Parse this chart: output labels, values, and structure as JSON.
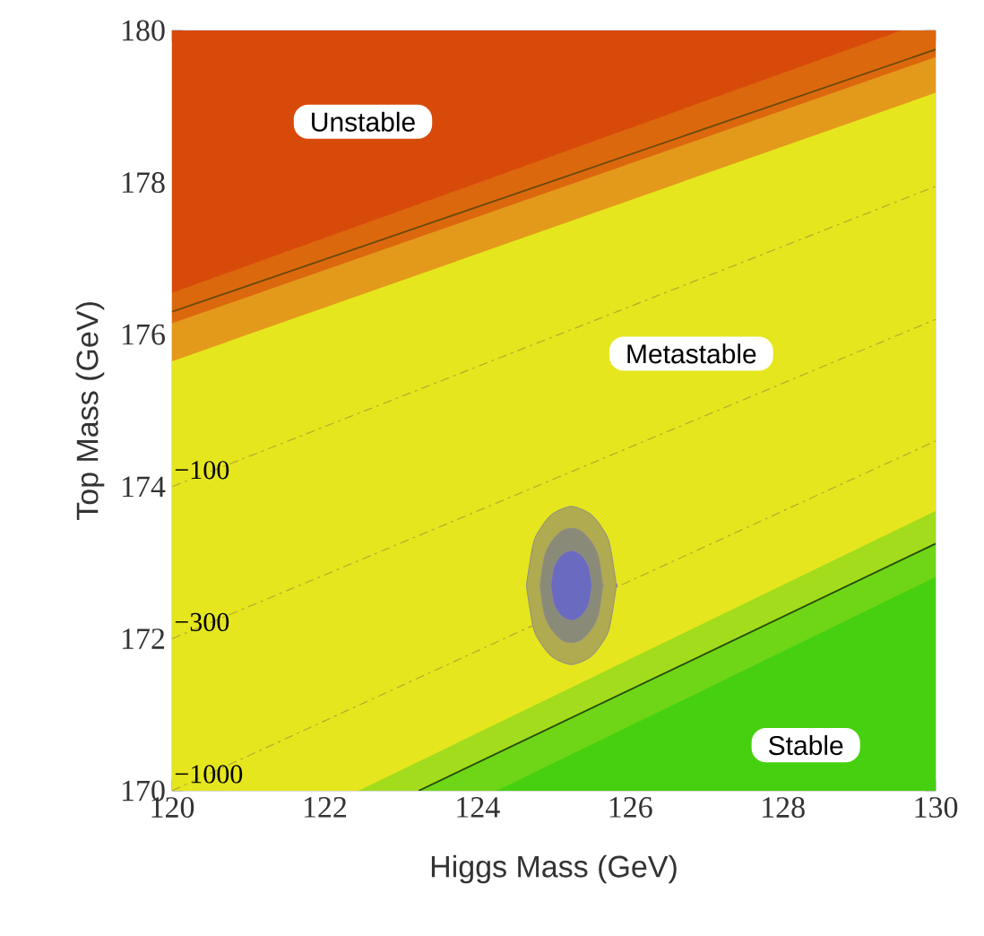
{
  "chart_data": {
    "type": "area",
    "xlabel": "Higgs Mass (GeV)",
    "ylabel": "Top Mass (GeV)",
    "xlim": [
      120,
      130
    ],
    "ylim": [
      170,
      180
    ],
    "xticks": [
      120,
      122,
      124,
      126,
      128,
      130
    ],
    "yticks": [
      170,
      172,
      174,
      176,
      178,
      180
    ],
    "annotations": [
      "Unstable",
      "Metastable",
      "Stable"
    ],
    "series": [
      {
        "color": "#d84a0a",
        "x": [
          120,
          129.55
        ],
        "values": [
          180,
          180
        ]
      },
      {
        "color": "#dc680e",
        "x": [
          120,
          129.55,
          130
        ],
        "values": [
          176.55,
          180,
          180
        ]
      },
      {
        "color": "#e39a1a",
        "x": [
          120,
          130
        ],
        "values": [
          176.15,
          179.65
        ]
      },
      {
        "color": "#e6e61e",
        "x": [
          120,
          130
        ],
        "values": [
          175.65,
          179.18
        ]
      },
      {
        "color": "#a2dc1c",
        "x": [
          122.44,
          130
        ],
        "values": [
          170,
          173.68
        ]
      },
      {
        "color": "#6ed616",
        "line_style": "solid",
        "x": [
          123.23,
          130
        ],
        "values": [
          170,
          173.25
        ]
      },
      {
        "color": "#46d010",
        "x": [
          124.25,
          130
        ],
        "values": [
          170,
          172.81
        ]
      },
      {
        "type": "line",
        "color": "#6a4a08",
        "line_style": "solid",
        "x": [
          120,
          130
        ],
        "values": [
          176.3,
          179.75
        ]
      },
      {
        "type": "line",
        "name": "−100",
        "color": "#b4aa30",
        "line_style": "dashed",
        "x": [
          120,
          130
        ],
        "values": [
          174,
          177.95
        ]
      },
      {
        "type": "line",
        "name": "−300",
        "color": "#b4aa30",
        "line_style": "dashed",
        "x": [
          120,
          130
        ],
        "values": [
          172,
          176.2
        ]
      },
      {
        "type": "line",
        "name": "−1000",
        "color": "#b4aa30",
        "line_style": "dashed",
        "x": [
          120,
          130
        ],
        "values": [
          170,
          174.6
        ]
      },
      {
        "type": "line",
        "color": "#b0aa50",
        "x": [
          124.64,
          124.73,
          124.83,
          124.98,
          125.23,
          125.48,
          125.63,
          125.73,
          125.82
        ],
        "values": [
          null,
          null,
          null,
          null,
          null,
          null,
          null,
          null,
          null
        ],
        "lower": [
          172.7,
          172.15,
          171.94,
          171.76,
          171.66,
          171.76,
          171.94,
          172.15,
          172.7
        ],
        "upper": [
          172.7,
          173.25,
          173.46,
          173.64,
          173.74,
          173.64,
          173.46,
          173.25,
          172.7
        ]
      },
      {
        "type": "line",
        "color": "#8a8a78",
        "x": [
          124.82,
          124.88,
          124.98,
          125.11,
          125.23,
          125.35,
          125.48,
          125.58,
          125.64
        ],
        "values": [
          null,
          null,
          null,
          null,
          null,
          null,
          null,
          null,
          null
        ],
        "lower": [
          172.7,
          172.31,
          172.11,
          171.98,
          171.95,
          171.98,
          172.11,
          172.31,
          172.7
        ],
        "upper": [
          172.7,
          173.09,
          173.29,
          173.42,
          173.45,
          173.42,
          173.29,
          173.09,
          172.7
        ]
      },
      {
        "type": "line",
        "color": "#6a6ac0",
        "x": [
          124.96,
          125.0,
          125.08,
          125.16,
          125.23,
          125.3,
          125.38,
          125.46,
          125.5
        ],
        "values": [
          null,
          null,
          null,
          null,
          null,
          null,
          null,
          null,
          null
        ],
        "lower": [
          172.7,
          172.46,
          172.32,
          172.26,
          172.24,
          172.26,
          172.32,
          172.46,
          172.7
        ],
        "upper": [
          172.7,
          172.94,
          173.08,
          173.14,
          173.16,
          173.14,
          173.08,
          172.94,
          172.7
        ]
      }
    ]
  }
}
